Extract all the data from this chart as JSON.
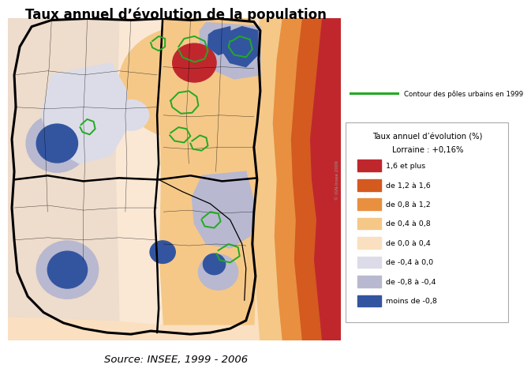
{
  "title": "Taux annuel d’évolution de la population",
  "source": "Source: INSEE, 1999 - 2006",
  "legend_title_line1": "Taux annuel d’évolution (%)",
  "legend_title_line2": "Lorraine : +0,16%",
  "urban_contour_label": "Contour des pôles urbains en 1999",
  "legend_items": [
    {
      "label": "1,6 et plus",
      "color": "#c0272d"
    },
    {
      "label": "de 1,2 à 1,6",
      "color": "#d45a20"
    },
    {
      "label": "de 0,8 à 1,2",
      "color": "#e89040"
    },
    {
      "label": "de 0,4 à 0,8",
      "color": "#f5c888"
    },
    {
      "label": "de 0,0 à 0,4",
      "color": "#fae0c0"
    },
    {
      "label": "de -0,4 à 0,0",
      "color": "#dcdce8"
    },
    {
      "label": "de -0,8 à -0,4",
      "color": "#b8b8d0"
    },
    {
      "label": "moins de -0,8",
      "color": "#3355a0"
    }
  ],
  "bg_color": "#ffffff",
  "fig_width": 6.45,
  "fig_height": 4.77
}
